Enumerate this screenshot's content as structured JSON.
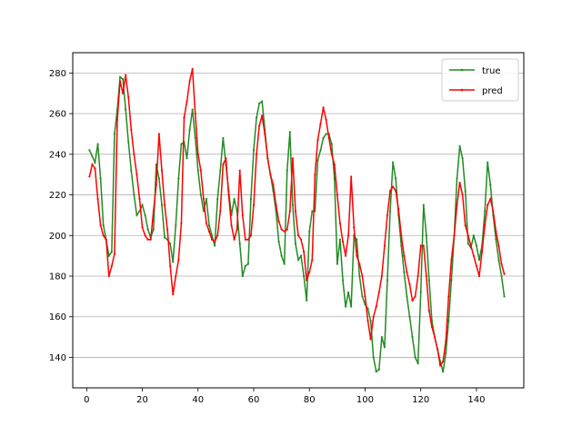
{
  "chart_data": {
    "type": "line",
    "title": "",
    "xlabel": "",
    "ylabel": "",
    "xlim": [
      -5,
      157
    ],
    "ylim": [
      125,
      290
    ],
    "xticks": [
      0,
      20,
      40,
      60,
      80,
      100,
      120,
      140
    ],
    "yticks": [
      140,
      160,
      180,
      200,
      220,
      240,
      260,
      280
    ],
    "grid": "horizontal",
    "legend_position": "top-right",
    "series": [
      {
        "name": "true",
        "color": "#228b22",
        "points": [
          [
            1,
            242
          ],
          [
            2,
            239
          ],
          [
            3,
            236
          ],
          [
            4,
            245
          ],
          [
            5,
            228
          ],
          [
            6,
            205
          ],
          [
            7,
            198
          ],
          [
            8,
            190
          ],
          [
            9,
            192
          ],
          [
            10,
            250
          ],
          [
            11,
            262
          ],
          [
            12,
            278
          ],
          [
            13,
            277
          ],
          [
            14,
            262
          ],
          [
            15,
            246
          ],
          [
            16,
            232
          ],
          [
            17,
            220
          ],
          [
            18,
            210
          ],
          [
            19,
            212
          ],
          [
            20,
            215
          ],
          [
            21,
            210
          ],
          [
            22,
            203
          ],
          [
            23,
            199
          ],
          [
            24,
            203
          ],
          [
            25,
            235
          ],
          [
            26,
            228
          ],
          [
            27,
            215
          ],
          [
            28,
            199
          ],
          [
            29,
            198
          ],
          [
            30,
            196
          ],
          [
            31,
            187
          ],
          [
            32,
            205
          ],
          [
            33,
            228
          ],
          [
            34,
            245
          ],
          [
            35,
            246
          ],
          [
            36,
            238
          ],
          [
            37,
            252
          ],
          [
            38,
            262
          ],
          [
            39,
            248
          ],
          [
            40,
            232
          ],
          [
            41,
            220
          ],
          [
            42,
            212
          ],
          [
            43,
            218
          ],
          [
            44,
            205
          ],
          [
            45,
            200
          ],
          [
            46,
            195
          ],
          [
            47,
            218
          ],
          [
            48,
            232
          ],
          [
            49,
            248
          ],
          [
            50,
            235
          ],
          [
            51,
            222
          ],
          [
            52,
            210
          ],
          [
            53,
            218
          ],
          [
            54,
            212
          ],
          [
            55,
            196
          ],
          [
            56,
            180
          ],
          [
            57,
            185
          ],
          [
            58,
            186
          ],
          [
            59,
            218
          ],
          [
            60,
            242
          ],
          [
            61,
            258
          ],
          [
            62,
            265
          ],
          [
            63,
            266
          ],
          [
            64,
            252
          ],
          [
            65,
            238
          ],
          [
            66,
            230
          ],
          [
            67,
            222
          ],
          [
            68,
            212
          ],
          [
            69,
            197
          ],
          [
            70,
            190
          ],
          [
            71,
            186
          ],
          [
            72,
            232
          ],
          [
            73,
            251
          ],
          [
            74,
            215
          ],
          [
            75,
            196
          ],
          [
            76,
            188
          ],
          [
            77,
            190
          ],
          [
            78,
            180
          ],
          [
            79,
            168
          ],
          [
            80,
            202
          ],
          [
            81,
            212
          ],
          [
            82,
            212
          ],
          [
            83,
            237
          ],
          [
            84,
            242
          ],
          [
            85,
            248
          ],
          [
            86,
            250
          ],
          [
            87,
            250
          ],
          [
            88,
            245
          ],
          [
            89,
            228
          ],
          [
            90,
            186
          ],
          [
            91,
            198
          ],
          [
            92,
            178
          ],
          [
            93,
            165
          ],
          [
            94,
            172
          ],
          [
            95,
            165
          ],
          [
            96,
            200
          ],
          [
            97,
            198
          ],
          [
            98,
            180
          ],
          [
            99,
            170
          ],
          [
            100,
            166
          ],
          [
            101,
            164
          ],
          [
            102,
            158
          ],
          [
            103,
            140
          ],
          [
            104,
            133
          ],
          [
            105,
            134
          ],
          [
            106,
            150
          ],
          [
            107,
            145
          ],
          [
            108,
            178
          ],
          [
            109,
            212
          ],
          [
            110,
            236
          ],
          [
            111,
            228
          ],
          [
            112,
            210
          ],
          [
            113,
            195
          ],
          [
            114,
            182
          ],
          [
            115,
            170
          ],
          [
            116,
            160
          ],
          [
            117,
            150
          ],
          [
            118,
            140
          ],
          [
            119,
            137
          ],
          [
            120,
            172
          ],
          [
            121,
            215
          ],
          [
            122,
            200
          ],
          [
            123,
            178
          ],
          [
            124,
            158
          ],
          [
            125,
            150
          ],
          [
            126,
            144
          ],
          [
            127,
            138
          ],
          [
            128,
            133
          ],
          [
            129,
            142
          ],
          [
            130,
            158
          ],
          [
            131,
            178
          ],
          [
            132,
            200
          ],
          [
            133,
            228
          ],
          [
            134,
            244
          ],
          [
            135,
            238
          ],
          [
            136,
            222
          ],
          [
            137,
            196
          ],
          [
            138,
            194
          ],
          [
            139,
            200
          ],
          [
            140,
            195
          ],
          [
            141,
            188
          ],
          [
            142,
            195
          ],
          [
            143,
            212
          ],
          [
            144,
            236
          ],
          [
            145,
            225
          ],
          [
            146,
            210
          ],
          [
            147,
            198
          ],
          [
            148,
            188
          ],
          [
            149,
            180
          ],
          [
            150,
            170
          ]
        ]
      },
      {
        "name": "pred",
        "color": "#ff0000",
        "points": [
          [
            1,
            229
          ],
          [
            2,
            235
          ],
          [
            3,
            233
          ],
          [
            4,
            218
          ],
          [
            5,
            205
          ],
          [
            6,
            200
          ],
          [
            7,
            198
          ],
          [
            8,
            180
          ],
          [
            9,
            185
          ],
          [
            10,
            191
          ],
          [
            11,
            257
          ],
          [
            12,
            276
          ],
          [
            13,
            270
          ],
          [
            14,
            279
          ],
          [
            15,
            268
          ],
          [
            16,
            252
          ],
          [
            17,
            240
          ],
          [
            18,
            230
          ],
          [
            19,
            218
          ],
          [
            20,
            204
          ],
          [
            21,
            200
          ],
          [
            22,
            198
          ],
          [
            23,
            198
          ],
          [
            24,
            212
          ],
          [
            25,
            225
          ],
          [
            26,
            250
          ],
          [
            27,
            232
          ],
          [
            28,
            215
          ],
          [
            29,
            203
          ],
          [
            30,
            185
          ],
          [
            31,
            171
          ],
          [
            32,
            180
          ],
          [
            33,
            188
          ],
          [
            34,
            206
          ],
          [
            35,
            258
          ],
          [
            36,
            266
          ],
          [
            37,
            276
          ],
          [
            38,
            282
          ],
          [
            39,
            260
          ],
          [
            40,
            240
          ],
          [
            41,
            232
          ],
          [
            42,
            218
          ],
          [
            43,
            206
          ],
          [
            44,
            202
          ],
          [
            45,
            198
          ],
          [
            46,
            197
          ],
          [
            47,
            200
          ],
          [
            48,
            212
          ],
          [
            49,
            235
          ],
          [
            50,
            238
          ],
          [
            51,
            220
          ],
          [
            52,
            205
          ],
          [
            53,
            198
          ],
          [
            54,
            203
          ],
          [
            55,
            232
          ],
          [
            56,
            210
          ],
          [
            57,
            198
          ],
          [
            58,
            198
          ],
          [
            59,
            200
          ],
          [
            60,
            215
          ],
          [
            61,
            240
          ],
          [
            62,
            254
          ],
          [
            63,
            259
          ],
          [
            64,
            250
          ],
          [
            65,
            238
          ],
          [
            66,
            230
          ],
          [
            67,
            225
          ],
          [
            68,
            215
          ],
          [
            69,
            207
          ],
          [
            70,
            203
          ],
          [
            71,
            202
          ],
          [
            72,
            203
          ],
          [
            73,
            212
          ],
          [
            74,
            238
          ],
          [
            75,
            212
          ],
          [
            76,
            200
          ],
          [
            77,
            198
          ],
          [
            78,
            192
          ],
          [
            79,
            178
          ],
          [
            80,
            182
          ],
          [
            81,
            188
          ],
          [
            82,
            230
          ],
          [
            83,
            247
          ],
          [
            84,
            255
          ],
          [
            85,
            263
          ],
          [
            86,
            257
          ],
          [
            87,
            248
          ],
          [
            88,
            240
          ],
          [
            89,
            235
          ],
          [
            90,
            220
          ],
          [
            91,
            206
          ],
          [
            92,
            197
          ],
          [
            93,
            190
          ],
          [
            94,
            200
          ],
          [
            95,
            229
          ],
          [
            96,
            204
          ],
          [
            97,
            190
          ],
          [
            98,
            186
          ],
          [
            99,
            180
          ],
          [
            100,
            170
          ],
          [
            101,
            158
          ],
          [
            102,
            149
          ],
          [
            103,
            160
          ],
          [
            104,
            165
          ],
          [
            105,
            172
          ],
          [
            106,
            180
          ],
          [
            107,
            195
          ],
          [
            108,
            210
          ],
          [
            109,
            222
          ],
          [
            110,
            224
          ],
          [
            111,
            222
          ],
          [
            112,
            213
          ],
          [
            113,
            200
          ],
          [
            114,
            190
          ],
          [
            115,
            182
          ],
          [
            116,
            176
          ],
          [
            117,
            168
          ],
          [
            118,
            170
          ],
          [
            119,
            180
          ],
          [
            120,
            195
          ],
          [
            121,
            195
          ],
          [
            122,
            180
          ],
          [
            123,
            163
          ],
          [
            124,
            155
          ],
          [
            125,
            150
          ],
          [
            126,
            144
          ],
          [
            127,
            136
          ],
          [
            128,
            138
          ],
          [
            129,
            148
          ],
          [
            130,
            170
          ],
          [
            131,
            188
          ],
          [
            132,
            200
          ],
          [
            133,
            215
          ],
          [
            134,
            226
          ],
          [
            135,
            220
          ],
          [
            136,
            205
          ],
          [
            137,
            200
          ],
          [
            138,
            195
          ],
          [
            139,
            190
          ],
          [
            140,
            185
          ],
          [
            141,
            180
          ],
          [
            142,
            192
          ],
          [
            143,
            205
          ],
          [
            144,
            215
          ],
          [
            145,
            218
          ],
          [
            146,
            212
          ],
          [
            147,
            202
          ],
          [
            148,
            195
          ],
          [
            149,
            186
          ],
          [
            150,
            181
          ]
        ]
      }
    ]
  }
}
